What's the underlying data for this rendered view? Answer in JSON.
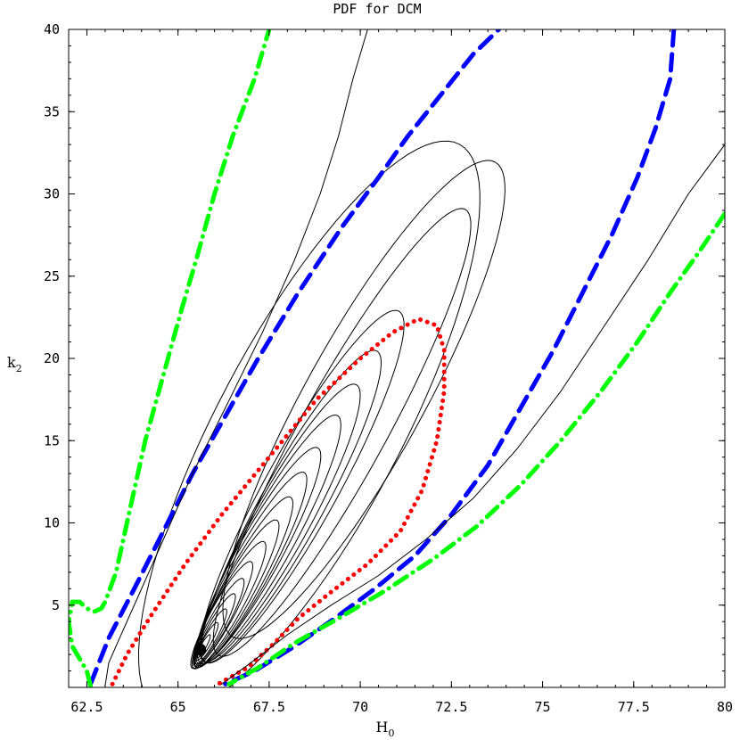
{
  "chart_data": {
    "type": "contour",
    "title": "PDF for DCM",
    "xlabel": "H",
    "xlabel_sub": "0",
    "ylabel": "k",
    "ylabel_sub": "2",
    "xlim": [
      62,
      80
    ],
    "ylim": [
      0,
      40
    ],
    "x_ticks": [
      62.5,
      65,
      67.5,
      70,
      72.5,
      75,
      77.5,
      80
    ],
    "x_tick_labels": [
      "62.5",
      "65",
      "67.5",
      "70",
      "72.5",
      "75",
      "77.5",
      "80"
    ],
    "y_ticks": [
      5,
      10,
      15,
      20,
      25,
      30,
      35,
      40
    ],
    "y_tick_labels": [
      "5",
      "10",
      "15",
      "20",
      "25",
      "30",
      "35",
      "40"
    ],
    "peak": {
      "x": 65.6,
      "y": 2.3
    },
    "colors": {
      "contour": "#000000",
      "level_68": "#ff0000",
      "level_95": "#0000ff",
      "level_99": "#00ff00",
      "peak_marker": "#000000"
    },
    "series": [
      {
        "style": "dotted",
        "color": "#ff0000",
        "points": [
          [
            63.2,
            0.2
          ],
          [
            63.6,
            2
          ],
          [
            64.3,
            4.5
          ],
          [
            65.2,
            7.5
          ],
          [
            66.2,
            10.5
          ],
          [
            67.5,
            14
          ],
          [
            68.8,
            17.5
          ],
          [
            70.0,
            20.0
          ],
          [
            70.9,
            21.6
          ],
          [
            71.6,
            22.4
          ],
          [
            72.1,
            22.0
          ],
          [
            72.3,
            20.5
          ],
          [
            72.3,
            18
          ],
          [
            72.1,
            15
          ],
          [
            71.7,
            12
          ],
          [
            71.1,
            9.5
          ],
          [
            70.2,
            7.5
          ],
          [
            69.2,
            5.8
          ],
          [
            68.3,
            4.2
          ],
          [
            67.6,
            2.6
          ],
          [
            66.9,
            1.2
          ],
          [
            66.1,
            0.2
          ]
        ]
      },
      {
        "style": "dashed",
        "color": "#0000ff",
        "points": [
          [
            62.6,
            0.2
          ],
          [
            63.1,
            3
          ],
          [
            63.8,
            6
          ],
          [
            64.6,
            9.5
          ],
          [
            65.4,
            13
          ],
          [
            66.3,
            16.5
          ],
          [
            67.2,
            20
          ],
          [
            68.3,
            24
          ],
          [
            69.5,
            28
          ],
          [
            70.5,
            31
          ],
          [
            71.3,
            33.5
          ],
          [
            72.2,
            36
          ],
          [
            73.1,
            38.5
          ],
          [
            73.8,
            40
          ]
        ]
      },
      {
        "style": "dashed",
        "color": "#0000ff",
        "points": [
          [
            78.6,
            40
          ],
          [
            78.5,
            37
          ],
          [
            78.1,
            34
          ],
          [
            77.6,
            31
          ],
          [
            76.9,
            27.5
          ],
          [
            76.1,
            24
          ],
          [
            75.3,
            20.5
          ],
          [
            74.4,
            17
          ],
          [
            73.5,
            13.5
          ],
          [
            72.5,
            10.5
          ],
          [
            71.5,
            8
          ],
          [
            70.4,
            6
          ],
          [
            69.3,
            4.2
          ],
          [
            68.2,
            2.5
          ],
          [
            67.1,
            1
          ],
          [
            66.3,
            0.2
          ]
        ]
      },
      {
        "style": "dashdot",
        "color": "#00ff00",
        "points": [
          [
            62.6,
            0.1
          ],
          [
            62.5,
            1
          ],
          [
            62.1,
            2.5
          ],
          [
            62.0,
            4
          ],
          [
            62.1,
            5.2
          ],
          [
            62.3,
            5.2
          ],
          [
            62.5,
            4.8
          ],
          [
            62.7,
            4.6
          ],
          [
            62.9,
            4.8
          ],
          [
            63.0,
            5.2
          ],
          [
            63.3,
            7
          ],
          [
            63.7,
            11
          ],
          [
            64.1,
            15
          ],
          [
            64.6,
            19
          ],
          [
            65.1,
            23
          ],
          [
            65.5,
            26
          ],
          [
            66.0,
            30
          ],
          [
            66.5,
            33.5
          ],
          [
            67.1,
            37
          ],
          [
            67.5,
            40
          ]
        ]
      },
      {
        "style": "dashdot",
        "color": "#00ff00",
        "points": [
          [
            80,
            28.8
          ],
          [
            79.3,
            26.5
          ],
          [
            78.5,
            24
          ],
          [
            77.6,
            21
          ],
          [
            76.6,
            18
          ],
          [
            75.5,
            15
          ],
          [
            74.4,
            12.3
          ],
          [
            73.2,
            9.8
          ],
          [
            72.0,
            7.8
          ],
          [
            70.7,
            5.9
          ],
          [
            69.4,
            4.2
          ],
          [
            68.2,
            2.7
          ],
          [
            67.2,
            1.2
          ],
          [
            66.4,
            0.2
          ]
        ]
      },
      {
        "style": "solid",
        "color": "#000000",
        "points": [
          [
            63.0,
            0.1
          ],
          [
            63.1,
            1.5
          ],
          [
            63.4,
            3
          ],
          [
            63.9,
            5.5
          ],
          [
            64.6,
            9
          ],
          [
            65.4,
            13
          ],
          [
            66.3,
            17
          ],
          [
            67.3,
            21.5
          ],
          [
            68.2,
            26
          ],
          [
            68.9,
            30
          ],
          [
            69.4,
            33.5
          ],
          [
            69.8,
            37
          ],
          [
            70.2,
            40
          ]
        ]
      },
      {
        "style": "solid",
        "color": "#000000",
        "points": [
          [
            80,
            33
          ],
          [
            79.0,
            30
          ],
          [
            77.9,
            26
          ],
          [
            76.7,
            22
          ],
          [
            75.5,
            18
          ],
          [
            74.3,
            14.5
          ],
          [
            73.1,
            11.5
          ],
          [
            71.8,
            9
          ],
          [
            70.5,
            6.8
          ],
          [
            69.2,
            5
          ],
          [
            68.0,
            3.2
          ],
          [
            67.0,
            1.5
          ],
          [
            66.2,
            0.2
          ]
        ]
      }
    ],
    "closed_contours": [
      {
        "cx": 69.5,
        "cy": 15.5,
        "rx_major": 15.5,
        "rx_minor": 2.6,
        "angle": 61
      },
      {
        "cx": 68.4,
        "cy": 12.2,
        "rx_major": 12.2,
        "rx_minor": 2.2,
        "angle": 61
      },
      {
        "cx": 68.1,
        "cy": 11.0,
        "rx_major": 10.8,
        "rx_minor": 1.9,
        "angle": 61
      },
      {
        "cx": 67.8,
        "cy": 10.0,
        "rx_major": 9.6,
        "rx_minor": 1.7,
        "angle": 61
      },
      {
        "cx": 67.5,
        "cy": 9.0,
        "rx_major": 8.6,
        "rx_minor": 1.5,
        "angle": 61
      },
      {
        "cx": 67.2,
        "cy": 8.0,
        "rx_major": 7.5,
        "rx_minor": 1.32,
        "angle": 61
      },
      {
        "cx": 67.0,
        "cy": 7.2,
        "rx_major": 6.7,
        "rx_minor": 1.18,
        "angle": 61
      },
      {
        "cx": 66.8,
        "cy": 6.4,
        "rx_major": 5.9,
        "rx_minor": 1.04,
        "angle": 61
      },
      {
        "cx": 66.6,
        "cy": 5.7,
        "rx_major": 5.1,
        "rx_minor": 0.92,
        "angle": 61
      },
      {
        "cx": 66.4,
        "cy": 5.0,
        "rx_major": 4.4,
        "rx_minor": 0.8,
        "angle": 61
      },
      {
        "cx": 66.2,
        "cy": 4.4,
        "rx_major": 3.7,
        "rx_minor": 0.68,
        "angle": 61
      },
      {
        "cx": 66.1,
        "cy": 3.9,
        "rx_major": 3.1,
        "rx_minor": 0.57,
        "angle": 61
      },
      {
        "cx": 66.0,
        "cy": 3.5,
        "rx_major": 2.5,
        "rx_minor": 0.46,
        "angle": 61
      },
      {
        "cx": 65.9,
        "cy": 3.1,
        "rx_major": 1.9,
        "rx_minor": 0.36,
        "angle": 61
      },
      {
        "cx": 65.8,
        "cy": 2.8,
        "rx_major": 1.3,
        "rx_minor": 0.26,
        "angle": 61
      },
      {
        "cx": 65.7,
        "cy": 2.5,
        "rx_major": 0.8,
        "rx_minor": 0.16,
        "angle": 61
      }
    ],
    "wide_contour": {
      "cx": 70.1,
      "cy": 17.5,
      "rx_major": 16.5,
      "rx_minor": 3.6,
      "angle": 61
    },
    "outer_contour": {
      "cx": 68.6,
      "cy": 15.8,
      "rx_major": 19.5,
      "rx_minor": 5.6,
      "angle": 62
    }
  }
}
